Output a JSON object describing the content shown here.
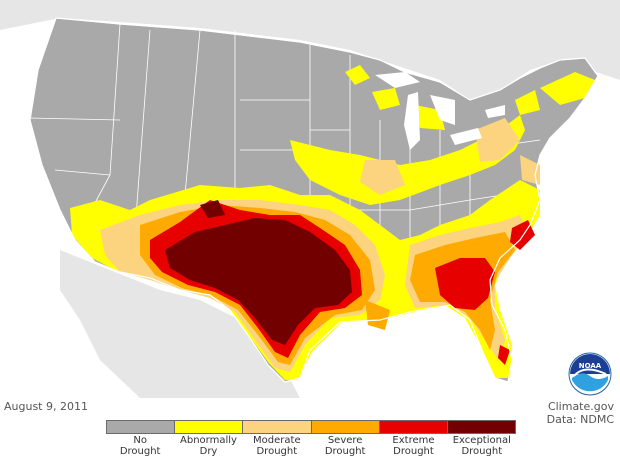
{
  "date": "August 9, 2011",
  "credit": {
    "site": "Climate.gov",
    "source": "Data: NDMC"
  },
  "logo_text": "NOAA",
  "legend": [
    {
      "label_line1": "No",
      "label_line2": "Drought",
      "color": "#a9a9a9"
    },
    {
      "label_line1": "Abnormally",
      "label_line2": "Dry",
      "color": "#ffff00"
    },
    {
      "label_line1": "Moderate",
      "label_line2": "Drought",
      "color": "#fcd37f"
    },
    {
      "label_line1": "Severe",
      "label_line2": "Drought",
      "color": "#ffaa00"
    },
    {
      "label_line1": "Extreme",
      "label_line2": "Drought",
      "color": "#e60000"
    },
    {
      "label_line1": "Exceptional",
      "label_line2": "Drought",
      "color": "#730000"
    }
  ],
  "colors": {
    "none": "#a9a9a9",
    "d0": "#ffff00",
    "d1": "#fcd37f",
    "d2": "#ffaa00",
    "d3": "#e60000",
    "d4": "#730000",
    "neighbor_land": "#e6e6e6",
    "borders": "#ffffff"
  }
}
